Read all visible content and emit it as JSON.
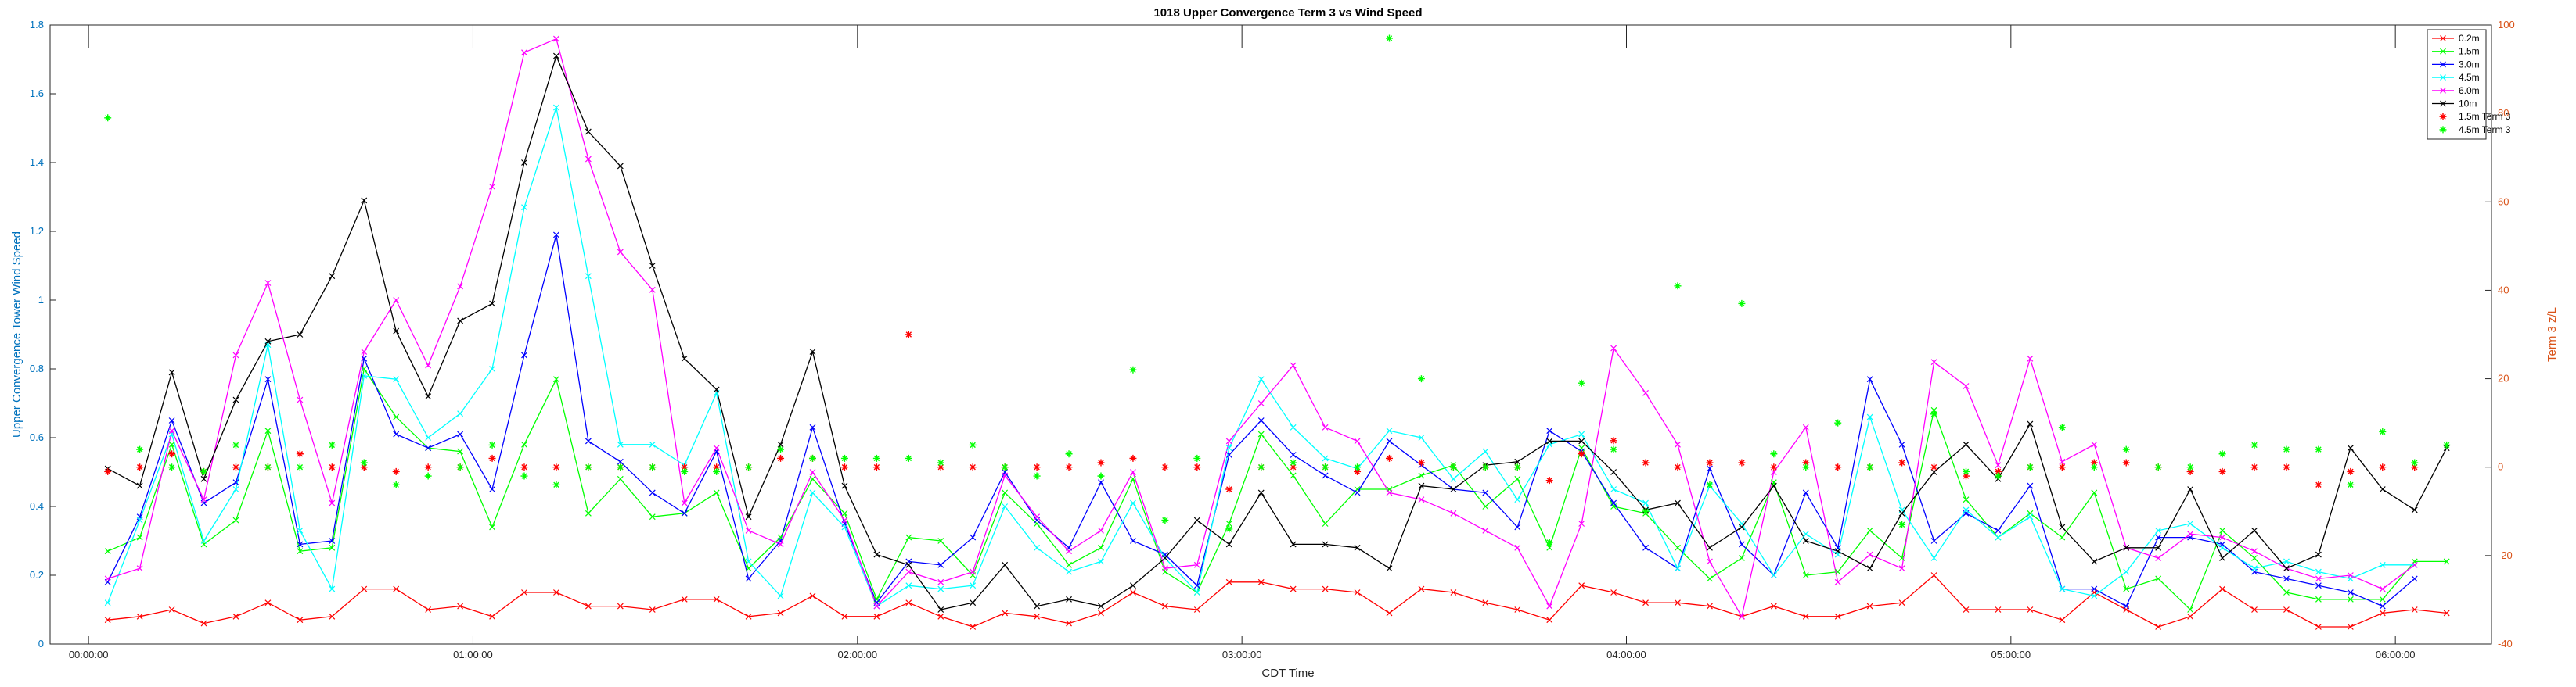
{
  "chart_data": {
    "type": "line",
    "title": "1018 Upper Convergence Term 3 vs Wind Speed",
    "xlabel": "CDT Time",
    "ylabel": "Upper Convergence Tower Wind Speed",
    "ylabel_right": "Term 3 z/L",
    "x_ticks": [
      "00:00:00",
      "01:00:00",
      "02:00:00",
      "03:00:00",
      "04:00:00",
      "05:00:00",
      "06:00:00"
    ],
    "y_ticks": [
      "0",
      "0.2",
      "0.4",
      "0.6",
      "0.8",
      "1",
      "1.2",
      "1.4",
      "1.6",
      "1.8"
    ],
    "y2_ticks": [
      "-40",
      "-20",
      "0",
      "20",
      "40",
      "60",
      "80",
      "100"
    ],
    "xlim_minutes": [
      -6,
      375
    ],
    "ylim": [
      0,
      1.8
    ],
    "y2lim": [
      -40,
      100
    ],
    "x_start_minutes": 3,
    "x_step_minutes": 5,
    "colors": {
      "left_axis": "#0072BD",
      "right_axis": "#D95319"
    },
    "series": [
      {
        "name": "0.2m",
        "color": "#FF0000",
        "marker": "x",
        "values": [
          0.07,
          0.08,
          0.1,
          0.06,
          0.08,
          0.12,
          0.07,
          0.08,
          0.16,
          0.16,
          0.1,
          0.11,
          0.08,
          0.15,
          0.15,
          0.11,
          0.11,
          0.1,
          0.13,
          0.13,
          0.08,
          0.09,
          0.14,
          0.08,
          0.08,
          0.12,
          0.08,
          0.05,
          0.09,
          0.08,
          0.06,
          0.09,
          0.15,
          0.11,
          0.1,
          0.18,
          0.18,
          0.16,
          0.16,
          0.15,
          0.09,
          0.16,
          0.15,
          0.12,
          0.1,
          0.07,
          0.17,
          0.15,
          0.12,
          0.12,
          0.11,
          0.08,
          0.11,
          0.08,
          0.08,
          0.11,
          0.12,
          0.2,
          0.1,
          0.1,
          0.1,
          0.07,
          0.15,
          0.1,
          0.05,
          0.08,
          0.16,
          0.1,
          0.1,
          0.05,
          0.05,
          0.09,
          0.1,
          0.09
        ]
      },
      {
        "name": "1.5m",
        "color": "#00FF00",
        "marker": "x",
        "values": [
          0.27,
          0.31,
          0.58,
          0.29,
          0.36,
          0.62,
          0.27,
          0.28,
          0.8,
          0.66,
          0.57,
          0.56,
          0.34,
          0.58,
          0.77,
          0.38,
          0.48,
          0.37,
          0.38,
          0.44,
          0.22,
          0.31,
          0.48,
          0.38,
          0.13,
          0.31,
          0.3,
          0.2,
          0.44,
          0.35,
          0.23,
          0.28,
          0.48,
          0.21,
          0.15,
          0.35,
          0.61,
          0.49,
          0.35,
          0.45,
          0.45,
          0.49,
          0.52,
          0.4,
          0.48,
          0.28,
          0.57,
          0.4,
          0.38,
          0.28,
          0.19,
          0.25,
          0.47,
          0.2,
          0.21,
          0.33,
          0.25,
          0.68,
          0.42,
          0.31,
          0.38,
          0.31,
          0.44,
          0.16,
          0.19,
          0.1,
          0.33,
          0.25,
          0.15,
          0.13,
          0.13,
          0.13,
          0.24,
          0.24
        ]
      },
      {
        "name": "3.0m",
        "color": "#0000FF",
        "marker": "x",
        "values": [
          0.18,
          0.37,
          0.65,
          0.41,
          0.47,
          0.77,
          0.29,
          0.3,
          0.83,
          0.61,
          0.57,
          0.61,
          0.45,
          0.84,
          1.19,
          0.59,
          0.53,
          0.44,
          0.38,
          0.56,
          0.19,
          0.3,
          0.63,
          0.35,
          0.12,
          0.24,
          0.23,
          0.31,
          0.5,
          0.36,
          0.28,
          0.47,
          0.3,
          0.26,
          0.17,
          0.55,
          0.65,
          0.55,
          0.49,
          0.44,
          0.59,
          0.52,
          0.45,
          0.44,
          0.34,
          0.62,
          0.56,
          0.41,
          0.28,
          0.22,
          0.51,
          0.29,
          0.2,
          0.44,
          0.28,
          0.77,
          0.58,
          0.3,
          0.38,
          0.33,
          0.46,
          0.16,
          0.16,
          0.11,
          0.31,
          0.31,
          0.29,
          0.21,
          0.19,
          0.17,
          0.15,
          0.11,
          0.19
        ]
      },
      {
        "name": "4.5m",
        "color": "#00FFFF",
        "marker": "x",
        "values": [
          0.12,
          0.36,
          0.61,
          0.3,
          0.45,
          0.87,
          0.33,
          0.16,
          0.78,
          0.77,
          0.6,
          0.67,
          0.8,
          1.27,
          1.56,
          1.07,
          0.58,
          0.58,
          0.52,
          0.73,
          0.24,
          0.14,
          0.44,
          0.34,
          0.11,
          0.17,
          0.16,
          0.17,
          0.4,
          0.28,
          0.21,
          0.24,
          0.41,
          0.25,
          0.15,
          0.57,
          0.77,
          0.63,
          0.54,
          0.51,
          0.62,
          0.6,
          0.48,
          0.56,
          0.42,
          0.58,
          0.61,
          0.45,
          0.41,
          0.22,
          0.46,
          0.35,
          0.2,
          0.32,
          0.26,
          0.66,
          0.39,
          0.25,
          0.39,
          0.31,
          0.37,
          0.16,
          0.14,
          0.21,
          0.33,
          0.35,
          0.28,
          0.22,
          0.24,
          0.21,
          0.19,
          0.23,
          0.23
        ]
      },
      {
        "name": "6.0m",
        "color": "#FF00FF",
        "marker": "x",
        "values": [
          0.19,
          0.22,
          0.62,
          0.42,
          0.84,
          1.05,
          0.71,
          0.41,
          0.85,
          1,
          0.81,
          1.04,
          1.33,
          1.72,
          1.76,
          1.41,
          1.14,
          1.03,
          0.41,
          0.57,
          0.33,
          0.29,
          0.5,
          0.36,
          0.11,
          0.21,
          0.18,
          0.21,
          0.49,
          0.37,
          0.27,
          0.33,
          0.5,
          0.22,
          0.23,
          0.59,
          0.7,
          0.81,
          0.63,
          0.59,
          0.44,
          0.42,
          0.38,
          0.33,
          0.28,
          0.11,
          0.35,
          0.86,
          0.73,
          0.58,
          0.24,
          0.08,
          0.5,
          0.63,
          0.18,
          0.26,
          0.22,
          0.82,
          0.75,
          0.52,
          0.83,
          0.53,
          0.58,
          0.28,
          0.25,
          0.32,
          0.31,
          0.27,
          0.22,
          0.19,
          0.2,
          0.16,
          0.23
        ]
      },
      {
        "name": "10m",
        "color": "#000000",
        "marker": "x",
        "values": [
          0.51,
          0.46,
          0.79,
          0.48,
          0.71,
          0.88,
          0.9,
          1.07,
          1.29,
          0.91,
          0.72,
          0.94,
          0.99,
          1.4,
          1.71,
          1.49,
          1.39,
          1.1,
          0.83,
          0.74,
          0.37,
          0.58,
          0.85,
          0.46,
          0.26,
          0.23,
          0.1,
          0.12,
          0.23,
          0.11,
          0.13,
          0.11,
          0.17,
          0.25,
          0.36,
          0.29,
          0.44,
          0.29,
          0.29,
          0.28,
          0.22,
          0.46,
          0.45,
          0.52,
          0.53,
          0.59,
          0.59,
          0.5,
          0.39,
          0.41,
          0.28,
          0.34,
          0.46,
          0.3,
          0.27,
          0.22,
          0.38,
          0.5,
          0.58,
          0.48,
          0.64,
          0.34,
          0.24,
          0.28,
          0.28,
          0.45,
          0.25,
          0.33,
          0.22,
          0.26,
          0.57,
          0.45,
          0.39,
          0.57
        ]
      },
      {
        "name": "1.5m Term 3",
        "color": "#FF0000",
        "marker": "*",
        "axis": "right",
        "values": [
          -1,
          0,
          3,
          -1,
          0,
          0,
          3,
          0,
          0,
          -1,
          0,
          0,
          2,
          0,
          0,
          0,
          0,
          0,
          0,
          0,
          0,
          2,
          2,
          0,
          0,
          30,
          0,
          0,
          0,
          0,
          0,
          1,
          2,
          0,
          0,
          -5,
          0,
          0,
          0,
          -1,
          2,
          1,
          0,
          0,
          0,
          -3,
          3,
          6,
          1,
          0,
          1,
          1,
          0,
          1,
          0,
          0,
          1,
          0,
          -2,
          -1,
          0,
          0,
          1,
          1,
          0,
          -1,
          -1,
          0,
          0,
          -4,
          -1,
          0,
          0
        ]
      },
      {
        "name": "4.5m Term 3",
        "color": "#00FF00",
        "marker": "*",
        "axis": "right",
        "values": [
          79,
          4,
          0,
          -1,
          5,
          0,
          0,
          5,
          1,
          -4,
          -2,
          0,
          5,
          -2,
          -4,
          0,
          0,
          0,
          -1,
          -1,
          0,
          4,
          2,
          2,
          2,
          2,
          1,
          5,
          0,
          -2,
          3,
          -2,
          22,
          -12,
          2,
          -14,
          0,
          1,
          0,
          0,
          97,
          20,
          0,
          0,
          0,
          -17,
          19,
          4,
          -10,
          41,
          -4,
          37,
          3,
          0,
          10,
          0,
          -13,
          12,
          -1,
          -2,
          0,
          9,
          0,
          4,
          0,
          0,
          3,
          5,
          4,
          4,
          -4,
          8,
          1,
          5
        ]
      }
    ]
  }
}
